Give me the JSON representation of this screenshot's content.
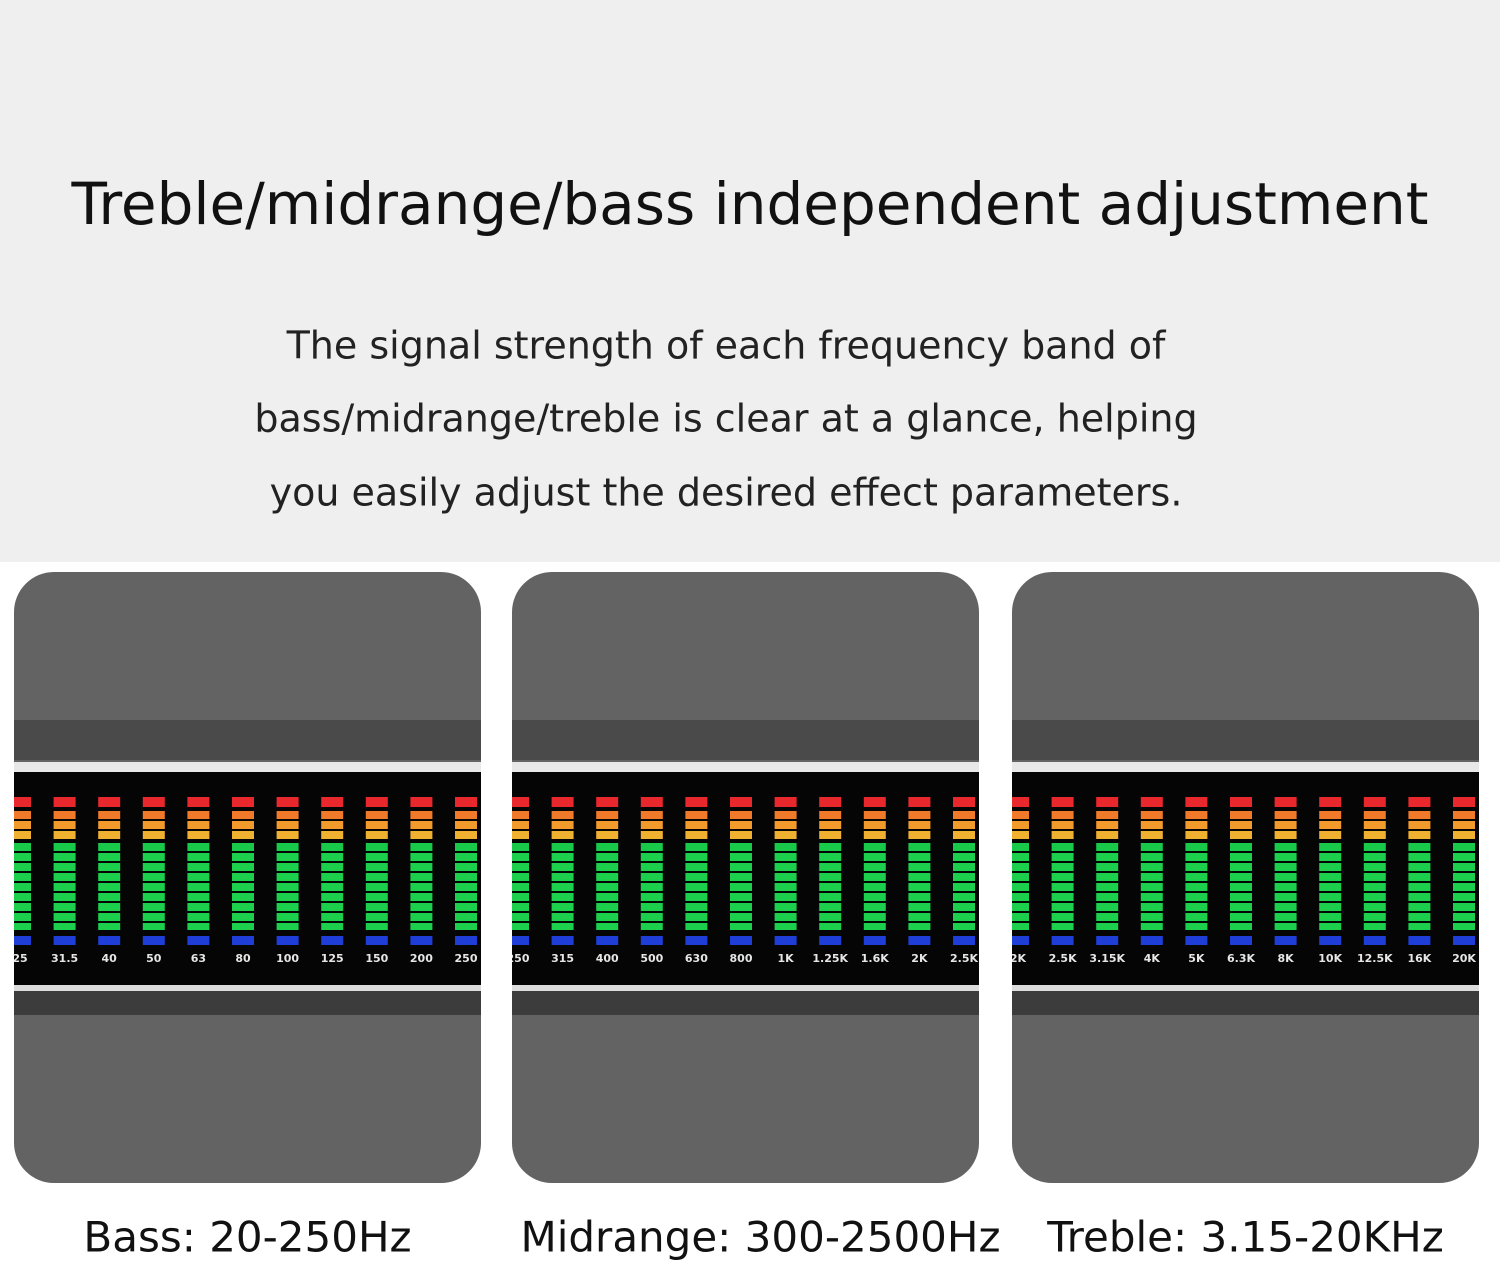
{
  "header": {
    "title": "Treble/midrange/bass independent adjustment",
    "description": [
      "The signal strength of each frequency band of",
      "bass/midrange/treble is clear at a glance, helping",
      "you easily adjust the desired effect parameters."
    ]
  },
  "panels": [
    {
      "labels": [
        "25",
        "31.5",
        "40",
        "50",
        "63",
        "80",
        "100",
        "125",
        "150",
        "200",
        "250"
      ],
      "caption": "Bass: 20-250Hz"
    },
    {
      "labels": [
        "250",
        "315",
        "400",
        "500",
        "630",
        "800",
        "1K",
        "1.25K",
        "1.6K",
        "2K",
        "2.5K"
      ],
      "caption": "Midrange: 300-2500Hz"
    },
    {
      "labels": [
        "2K",
        "2.5K",
        "3.15K",
        "4K",
        "5K",
        "6.3K",
        "8K",
        "10K",
        "12.5K",
        "16K",
        "20K"
      ],
      "caption": "Treble: 3.15-20KHz"
    }
  ]
}
